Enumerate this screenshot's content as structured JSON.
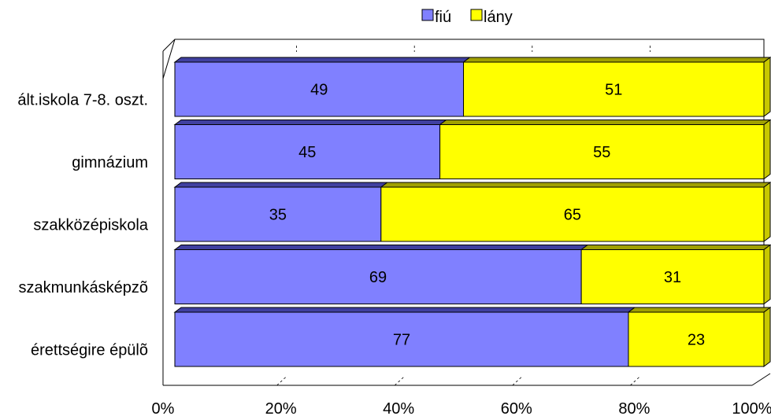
{
  "chart_data": {
    "type": "bar",
    "orientation": "horizontal",
    "stacked": "percent",
    "three_d": true,
    "categories": [
      "ált.iskola 7-8. oszt.",
      "gimnázium",
      "szakközépiskola",
      "szakmunkásképzõ",
      "érettségire épülõ"
    ],
    "series": [
      {
        "name": "fiú",
        "values": [
          49,
          45,
          35,
          69,
          77
        ],
        "color": "#8080FF"
      },
      {
        "name": "lány",
        "values": [
          51,
          55,
          65,
          31,
          23
        ],
        "color": "#FFFF00"
      }
    ],
    "xaxis": {
      "ticks": [
        "0%",
        "20%",
        "40%",
        "60%",
        "80%",
        "100%"
      ],
      "range": [
        0,
        100
      ]
    },
    "legend": {
      "position": "top"
    },
    "grid": false
  }
}
